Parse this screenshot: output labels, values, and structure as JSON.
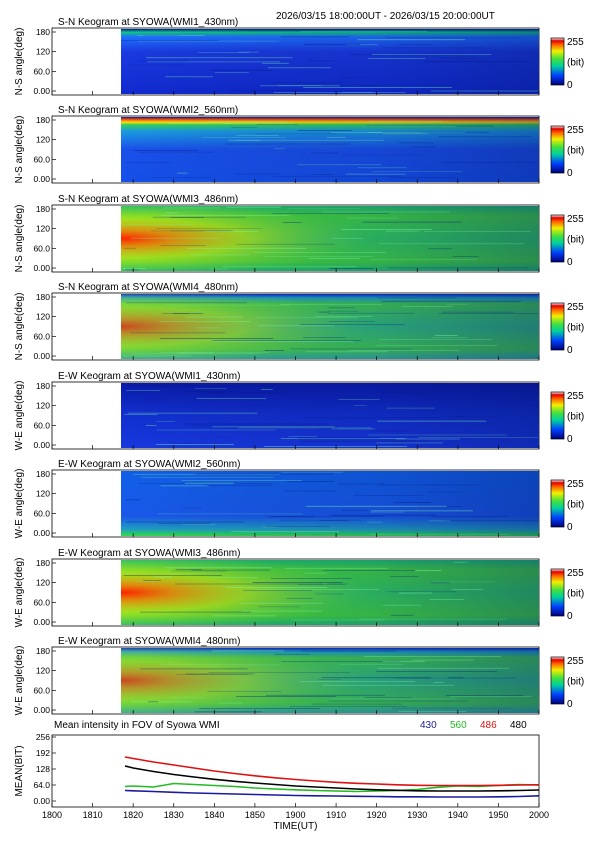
{
  "timerange_text": "2026/03/15 18:00:00UT - 2026/03/15 20:00:00UT",
  "keogram_panels": [
    {
      "title": "S-N Keogram at SYOWA(WMI1_430nm)",
      "ylabel": "N-S angle(deg)",
      "scale": "k430"
    },
    {
      "title": "S-N Keogram at SYOWA(WMI2_560nm)",
      "ylabel": "N-S angle(deg)",
      "scale": "k560ns"
    },
    {
      "title": "S-N Keogram at SYOWA(WMI3_486nm)",
      "ylabel": "N-S angle(deg)",
      "scale": "k486"
    },
    {
      "title": "S-N Keogram at SYOWA(WMI4_480nm)",
      "ylabel": "N-S angle(deg)",
      "scale": "k480"
    },
    {
      "title": "E-W Keogram at SYOWA(WMI1_430nm)",
      "ylabel": "W-E angle(deg)",
      "scale": "k430ew"
    },
    {
      "title": "E-W Keogram at SYOWA(WMI2_560nm)",
      "ylabel": "W-E angle(deg)",
      "scale": "k560ew"
    },
    {
      "title": "E-W Keogram at SYOWA(WMI3_486nm)",
      "ylabel": "W-E angle(deg)",
      "scale": "k486"
    },
    {
      "title": "E-W Keogram at SYOWA(WMI4_480nm)",
      "ylabel": "W-E angle(deg)",
      "scale": "k480"
    }
  ],
  "keogram_yticks": [
    "0.00",
    "60.0",
    "120",
    "180"
  ],
  "colorbar": {
    "max": "255",
    "unit": "(bit)",
    "min": "0"
  },
  "mean_panel": {
    "title": "Mean intensity in FOV of Syowa WMI",
    "legend": [
      {
        "label": "430",
        "color": "#1a1aa0"
      },
      {
        "label": "560",
        "color": "#22bb22"
      },
      {
        "label": "486",
        "color": "#dd1111"
      },
      {
        "label": "480",
        "color": "#000000"
      }
    ]
  },
  "chart_data": {
    "type": "line",
    "title": "Mean intensity in FOV of Syowa WMI",
    "xlabel": "TIME(UT)",
    "ylabel": "MEAN(BIT)",
    "x_tick_labels": [
      "1800",
      "1810",
      "1820",
      "1830",
      "1840",
      "1850",
      "1900",
      "1910",
      "1920",
      "1930",
      "1940",
      "1950",
      "2000"
    ],
    "y_tick_labels": [
      "0.00",
      "64.0",
      "128",
      "192",
      "256"
    ],
    "ylim": [
      0,
      256
    ],
    "x_minutes_from_1800": [
      18,
      20,
      25,
      30,
      35,
      40,
      45,
      50,
      55,
      60,
      65,
      70,
      75,
      80,
      85,
      90,
      95,
      100,
      105,
      110,
      115,
      120
    ],
    "series": [
      {
        "name": "430",
        "color": "#1a1aa0",
        "values": [
          42,
          41,
          38,
          35,
          32,
          30,
          28,
          26,
          24,
          22,
          21,
          20,
          19,
          18,
          17,
          17,
          16,
          16,
          16,
          17,
          18,
          21
        ]
      },
      {
        "name": "560",
        "color": "#22bb22",
        "values": [
          58,
          60,
          56,
          70,
          66,
          62,
          58,
          52,
          48,
          45,
          42,
          40,
          38,
          40,
          42,
          46,
          55,
          60,
          58,
          62,
          66,
          64
        ]
      },
      {
        "name": "486",
        "color": "#dd1111",
        "values": [
          176,
          170,
          156,
          144,
          132,
          120,
          110,
          101,
          93,
          86,
          80,
          75,
          71,
          68,
          65,
          63,
          62,
          62,
          62,
          63,
          64,
          65
        ]
      },
      {
        "name": "480",
        "color": "#000000",
        "values": [
          140,
          132,
          118,
          106,
          96,
          87,
          79,
          72,
          66,
          60,
          56,
          52,
          48,
          45,
          43,
          41,
          40,
          40,
          40,
          41,
          42,
          44
        ]
      }
    ]
  }
}
